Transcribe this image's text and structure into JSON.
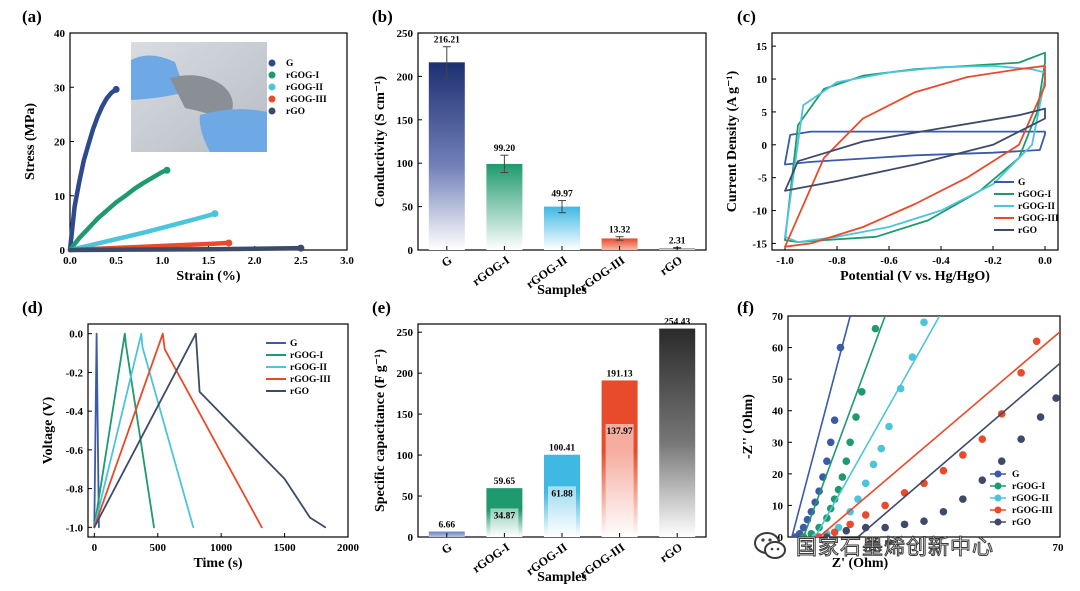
{
  "figure": {
    "watermark_text": "国家石墨烯创新中心"
  },
  "chart_data": [
    {
      "id": "a",
      "panel_label": "(a)",
      "type": "line",
      "xlabel": "Strain (%)",
      "ylabel": "Stress (MPa)",
      "xlim": [
        0,
        3.0
      ],
      "ylim": [
        0,
        40
      ],
      "xticks": [
        "0.0",
        "0.5",
        "1.0",
        "1.5",
        "2.0",
        "2.5",
        "3.0"
      ],
      "yticks": [
        "0",
        "10",
        "20",
        "30",
        "40"
      ],
      "legend_position": "top-right",
      "inset": "photo of flexible film held in gloved hand",
      "series": [
        {
          "name": "G",
          "color": "#2e4a8e",
          "x": [
            0,
            0.05,
            0.1,
            0.15,
            0.2,
            0.25,
            0.3,
            0.35,
            0.4,
            0.45,
            0.5
          ],
          "y": [
            0,
            8,
            12.5,
            16.5,
            19.5,
            22.3,
            24.6,
            26.5,
            28,
            29,
            29.6
          ]
        },
        {
          "name": "rGOG-I",
          "color": "#1e9a6e",
          "x": [
            0,
            0.1,
            0.2,
            0.3,
            0.4,
            0.5,
            0.6,
            0.7,
            0.8,
            0.9,
            1.0,
            1.05
          ],
          "y": [
            0,
            2.2,
            4,
            5.8,
            7.3,
            8.8,
            10,
            11.3,
            12.4,
            13.4,
            14.4,
            14.7
          ]
        },
        {
          "name": "rGOG-II",
          "color": "#4cc4dc",
          "x": [
            0,
            0.2,
            0.4,
            0.6,
            0.8,
            1.0,
            1.2,
            1.4,
            1.57
          ],
          "y": [
            0,
            0.8,
            1.6,
            2.4,
            3.2,
            4.1,
            5,
            5.9,
            6.7
          ]
        },
        {
          "name": "rGOG-III",
          "color": "#e84a2c",
          "x": [
            0,
            0.4,
            0.8,
            1.2,
            1.5,
            1.72
          ],
          "y": [
            0,
            0.3,
            0.6,
            0.9,
            1.1,
            1.3
          ]
        },
        {
          "name": "rGO",
          "color": "#3e4a6a",
          "x": [
            0,
            0.5,
            1.0,
            1.5,
            2.0,
            2.3,
            2.5
          ],
          "y": [
            0,
            0.05,
            0.1,
            0.15,
            0.22,
            0.3,
            0.35
          ]
        }
      ]
    },
    {
      "id": "b",
      "panel_label": "(b)",
      "type": "bar",
      "xlabel": "Samples",
      "ylabel": "Conductivity (S cm⁻¹)",
      "ylim": [
        0,
        250
      ],
      "yticks": [
        "0",
        "50",
        "100",
        "150",
        "200",
        "250"
      ],
      "categories": [
        "G",
        "rGOG-I",
        "rGOG-II",
        "rGOG-III",
        "rGO"
      ],
      "values": [
        216.21,
        99.2,
        49.97,
        13.32,
        2.31
      ],
      "value_labels": [
        "216.21",
        "99.20",
        "49.97",
        "13.32",
        "2.31"
      ],
      "errors": [
        18,
        10,
        7,
        2,
        0.5
      ],
      "colors": [
        "#1c2f70",
        "#1e9a6e",
        "#3fb8e4",
        "#e84a2c",
        "#999999"
      ]
    },
    {
      "id": "c",
      "panel_label": "(c)",
      "type": "line",
      "xlabel": "Potential (V vs. Hg/HgO)",
      "ylabel": "Current Density (A g⁻¹)",
      "xlim": [
        -1.05,
        0.05
      ],
      "ylim": [
        -16,
        17
      ],
      "xticks": [
        "-1.0",
        "-0.8",
        "-0.6",
        "-0.4",
        "-0.2",
        "0.0"
      ],
      "yticks": [
        "-15",
        "-10",
        "-5",
        "0",
        "5",
        "10",
        "15"
      ],
      "legend_position": "bottom-right",
      "series": [
        {
          "name": "G",
          "color": "#3b5aa8",
          "x": [
            -1.0,
            -0.98,
            -0.9,
            -0.5,
            0.0,
            0.0,
            -0.02,
            -0.2,
            -0.5,
            -0.9,
            -1.0,
            -1.0
          ],
          "y": [
            -2.8,
            1.5,
            2.0,
            2.0,
            2.0,
            1.6,
            -0.8,
            -1.2,
            -1.6,
            -2.6,
            -3.0,
            -2.8
          ]
        },
        {
          "name": "rGOG-I",
          "color": "#1e9a6e",
          "x": [
            -1.0,
            -0.95,
            -0.85,
            -0.7,
            -0.5,
            -0.3,
            -0.1,
            0.0,
            0.0,
            -0.03,
            -0.1,
            -0.25,
            -0.45,
            -0.65,
            -0.85,
            -0.95,
            -1.0
          ],
          "y": [
            -14.5,
            3,
            8.5,
            10.5,
            11.5,
            12,
            12.5,
            14,
            12.5,
            5,
            -2,
            -7,
            -11.5,
            -14,
            -14.5,
            -14.8,
            -14.5
          ]
        },
        {
          "name": "rGOG-II",
          "color": "#4cc4dc",
          "x": [
            -1.0,
            -0.93,
            -0.8,
            -0.6,
            -0.4,
            -0.2,
            -0.05,
            0.0,
            0.0,
            -0.05,
            -0.2,
            -0.4,
            -0.6,
            -0.8,
            -0.95,
            -1.0
          ],
          "y": [
            -14,
            6,
            9.5,
            11,
            11.8,
            12,
            11.5,
            11,
            10,
            0,
            -6,
            -10,
            -12.5,
            -14,
            -14.8,
            -14
          ]
        },
        {
          "name": "rGOG-III",
          "color": "#e84a2c",
          "x": [
            -1.0,
            -0.85,
            -0.7,
            -0.5,
            -0.3,
            -0.1,
            0.0,
            0.0,
            -0.1,
            -0.3,
            -0.5,
            -0.7,
            -0.9,
            -1.0
          ],
          "y": [
            -15.5,
            -2,
            4,
            8,
            10.3,
            11.5,
            12,
            9,
            0,
            -5,
            -9,
            -12.5,
            -15,
            -15.5
          ]
        },
        {
          "name": "rGO",
          "color": "#3e4a6a",
          "x": [
            -1.0,
            -0.95,
            -0.7,
            -0.4,
            -0.1,
            0.0,
            0.0,
            -0.2,
            -0.5,
            -0.8,
            -1.0
          ],
          "y": [
            -7,
            -2.5,
            0.5,
            2.5,
            4.5,
            5.5,
            4,
            0,
            -3,
            -5.5,
            -7
          ]
        }
      ]
    },
    {
      "id": "d",
      "panel_label": "(d)",
      "type": "line",
      "xlabel": "Time (s)",
      "ylabel": "Voltage (V)",
      "xlim": [
        -50,
        2000
      ],
      "ylim": [
        -1.05,
        0.05
      ],
      "xticks": [
        "0",
        "500",
        "1000",
        "1500",
        "2000"
      ],
      "yticks": [
        "0.0",
        "-0.2",
        "-0.4",
        "-0.6",
        "-0.8",
        "-1.0"
      ],
      "legend_position": "top-right",
      "series": [
        {
          "name": "G",
          "color": "#3b5aa8",
          "x": [
            0,
            18,
            36
          ],
          "y": [
            -1.0,
            0.0,
            -1.0
          ]
        },
        {
          "name": "rGOG-I",
          "color": "#1e9a6e",
          "x": [
            0,
            240,
            250,
            470
          ],
          "y": [
            -1.0,
            0.0,
            -0.06,
            -1.0
          ]
        },
        {
          "name": "rGOG-II",
          "color": "#4cc4dc",
          "x": [
            0,
            370,
            380,
            780
          ],
          "y": [
            -1.0,
            0.0,
            -0.07,
            -1.0
          ]
        },
        {
          "name": "rGOG-III",
          "color": "#e84a2c",
          "x": [
            0,
            540,
            555,
            1320
          ],
          "y": [
            -1.0,
            0.0,
            -0.08,
            -1.0
          ]
        },
        {
          "name": "rGO",
          "color": "#3e4a6a",
          "x": [
            0,
            800,
            830,
            1500,
            1700,
            1820
          ],
          "y": [
            -1.0,
            0.0,
            -0.3,
            -0.75,
            -0.95,
            -1.0
          ]
        }
      ]
    },
    {
      "id": "e",
      "panel_label": "(e)",
      "type": "bar",
      "xlabel": "Samples",
      "ylabel": "Specific capacitance (F g⁻¹)",
      "ylim": [
        0,
        260
      ],
      "yticks": [
        "0",
        "50",
        "100",
        "150",
        "200",
        "250"
      ],
      "categories": [
        "G",
        "rGOG-I",
        "rGOG-II",
        "rGOG-III",
        "rGO"
      ],
      "values": [
        6.66,
        59.65,
        100.41,
        191.13,
        254.43
      ],
      "value_labels": [
        "6.66",
        "59.65",
        "100.41",
        "191.13",
        "254.43"
      ],
      "inner_values": [
        null,
        34.87,
        61.88,
        137.97,
        null
      ],
      "inner_labels": [
        "",
        "34.87",
        "61.88",
        "137.97",
        ""
      ],
      "colors": [
        "#3b5aa8",
        "#1e9a6e",
        "#3fb8e4",
        "#e84a2c",
        "#333333"
      ]
    },
    {
      "id": "f",
      "panel_label": "(f)",
      "type": "scatter",
      "xlabel": "Z' (Ohm)",
      "ylabel": "-Z'' (Ohm)",
      "xlim": [
        0,
        70
      ],
      "ylim": [
        0,
        70
      ],
      "yticks": [
        "0",
        "10",
        "20",
        "30",
        "40",
        "50",
        "60",
        "70"
      ],
      "x_tick_visible": "70",
      "legend_position": "bottom-right",
      "series": [
        {
          "name": "G",
          "color": "#3b5aa8",
          "x": [
            2,
            3,
            4,
            5,
            6,
            7,
            8,
            9,
            10,
            11,
            12,
            13.5
          ],
          "y": [
            0,
            1,
            3,
            5.5,
            8,
            11,
            14.5,
            19,
            24,
            30,
            37,
            60
          ],
          "fit": [
            [
              1,
              0
            ],
            [
              16,
              70
            ]
          ]
        },
        {
          "name": "rGOG-I",
          "color": "#1e9a6e",
          "x": [
            4,
            6,
            8,
            10,
            11,
            12,
            13,
            14,
            15,
            16,
            17.5,
            19,
            22.5
          ],
          "y": [
            0,
            1,
            3,
            6,
            9,
            12,
            15,
            19,
            24,
            30,
            38,
            46,
            66
          ],
          "fit": [
            [
              4,
              0
            ],
            [
              25,
              70
            ]
          ]
        },
        {
          "name": "rGOG-II",
          "color": "#4cc4dc",
          "x": [
            7,
            10,
            13,
            16,
            18,
            20,
            22,
            24,
            26,
            29,
            32,
            35
          ],
          "y": [
            0,
            1,
            3,
            8,
            12,
            17,
            23,
            28,
            35,
            47,
            57,
            68
          ],
          "fit": [
            [
              7,
              0
            ],
            [
              39,
              70
            ]
          ]
        },
        {
          "name": "rGOG-III",
          "color": "#e84a2c",
          "x": [
            8,
            12,
            16,
            20,
            25,
            30,
            35,
            40,
            45,
            50,
            55,
            60,
            64
          ],
          "y": [
            0,
            1.5,
            4,
            7,
            10,
            14,
            17,
            21,
            26,
            31,
            39,
            52,
            62
          ],
          "fit": [
            [
              8,
              0
            ],
            [
              70,
              65
            ]
          ]
        },
        {
          "name": "rGO",
          "color": "#3e4a6a",
          "x": [
            10,
            15,
            20,
            25,
            30,
            35,
            40,
            45,
            50,
            55,
            60,
            65,
            69
          ],
          "y": [
            0,
            2,
            3,
            3,
            4,
            5,
            8,
            12,
            18,
            24,
            31,
            38,
            44
          ],
          "fit": [
            [
              18,
              0
            ],
            [
              70,
              55
            ]
          ]
        }
      ]
    }
  ]
}
